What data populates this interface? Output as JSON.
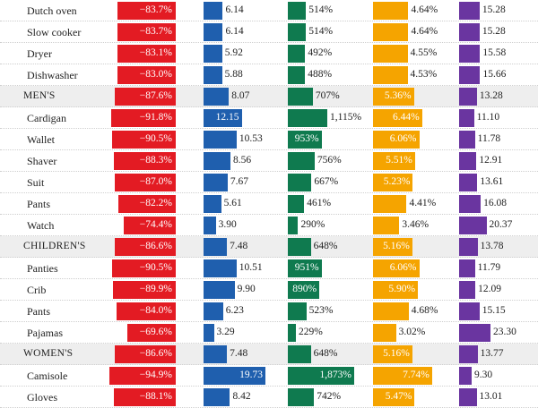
{
  "chart_data": {
    "type": "bar",
    "categories": [
      "Dutch oven",
      "Slow cooker",
      "Dryer",
      "Dishwasher",
      "MEN'S",
      "Cardigan",
      "Wallet",
      "Shaver",
      "Suit",
      "Pants",
      "Watch",
      "CHILDREN'S",
      "Panties",
      "Crib",
      "Pants",
      "Pajamas",
      "WOMEN'S",
      "Camisole",
      "Gloves"
    ],
    "group_rows": [
      "MEN'S",
      "CHILDREN'S",
      "WOMEN'S"
    ],
    "series": [
      {
        "color": "#e31b23",
        "values": [
          -83.7,
          -83.7,
          -83.1,
          -83.0,
          -87.6,
          -91.8,
          -90.5,
          -88.3,
          -87.0,
          -82.2,
          -74.4,
          -86.6,
          -90.5,
          -89.9,
          -84.0,
          -69.6,
          -86.6,
          -94.9,
          -88.1
        ],
        "labels": [
          "−83.7%",
          "−83.7%",
          "−83.1%",
          "−83.0%",
          "−87.6%",
          "−91.8%",
          "−90.5%",
          "−88.3%",
          "−87.0%",
          "−82.2%",
          "−74.4%",
          "−86.6%",
          "−90.5%",
          "−89.9%",
          "−84.0%",
          "−69.6%",
          "−86.6%",
          "−94.9%",
          "−88.1%"
        ]
      },
      {
        "color": "#1f5fae",
        "values": [
          6.14,
          6.14,
          5.92,
          5.88,
          8.07,
          12.15,
          10.53,
          8.56,
          7.67,
          5.61,
          3.9,
          7.48,
          10.51,
          9.9,
          6.23,
          3.29,
          7.48,
          19.73,
          8.42
        ],
        "labels": [
          "6.14",
          "6.14",
          "5.92",
          "5.88",
          "8.07",
          "12.15",
          "10.53",
          "8.56",
          "7.67",
          "5.61",
          "3.90",
          "7.48",
          "10.51",
          "9.90",
          "6.23",
          "3.29",
          "7.48",
          "19.73",
          "8.42"
        ]
      },
      {
        "color": "#0f7a4f",
        "values": [
          514,
          514,
          492,
          488,
          707,
          1115,
          953,
          756,
          667,
          461,
          290,
          648,
          951,
          890,
          523,
          229,
          648,
          1873,
          742
        ],
        "labels": [
          "514%",
          "514%",
          "492%",
          "488%",
          "707%",
          "1,115%",
          "953%",
          "756%",
          "667%",
          "461%",
          "290%",
          "648%",
          "951%",
          "890%",
          "523%",
          "229%",
          "648%",
          "1,873%",
          "742%"
        ]
      },
      {
        "color": "#f5a400",
        "values": [
          4.64,
          4.64,
          4.55,
          4.53,
          5.36,
          6.44,
          6.06,
          5.51,
          5.23,
          4.41,
          3.46,
          5.16,
          6.06,
          5.9,
          4.68,
          3.02,
          5.16,
          7.74,
          5.47
        ],
        "labels": [
          "4.64%",
          "4.64%",
          "4.55%",
          "4.53%",
          "5.36%",
          "6.44%",
          "6.06%",
          "5.51%",
          "5.23%",
          "4.41%",
          "3.46%",
          "5.16%",
          "6.06%",
          "5.90%",
          "4.68%",
          "3.02%",
          "5.16%",
          "7.74%",
          "5.47%"
        ]
      },
      {
        "color": "#6a35a0",
        "values": [
          15.28,
          15.28,
          15.58,
          15.66,
          13.28,
          11.1,
          11.78,
          12.91,
          13.61,
          16.08,
          20.37,
          13.78,
          11.79,
          12.09,
          15.15,
          23.3,
          13.77,
          9.3,
          13.01
        ],
        "labels": [
          "15.28",
          "15.28",
          "15.58",
          "15.66",
          "13.28",
          "11.10",
          "11.78",
          "12.91",
          "13.61",
          "16.08",
          "20.37",
          "13.78",
          "11.79",
          "12.09",
          "15.15",
          "23.30",
          "13.77",
          "9.30",
          "13.01"
        ]
      }
    ]
  }
}
